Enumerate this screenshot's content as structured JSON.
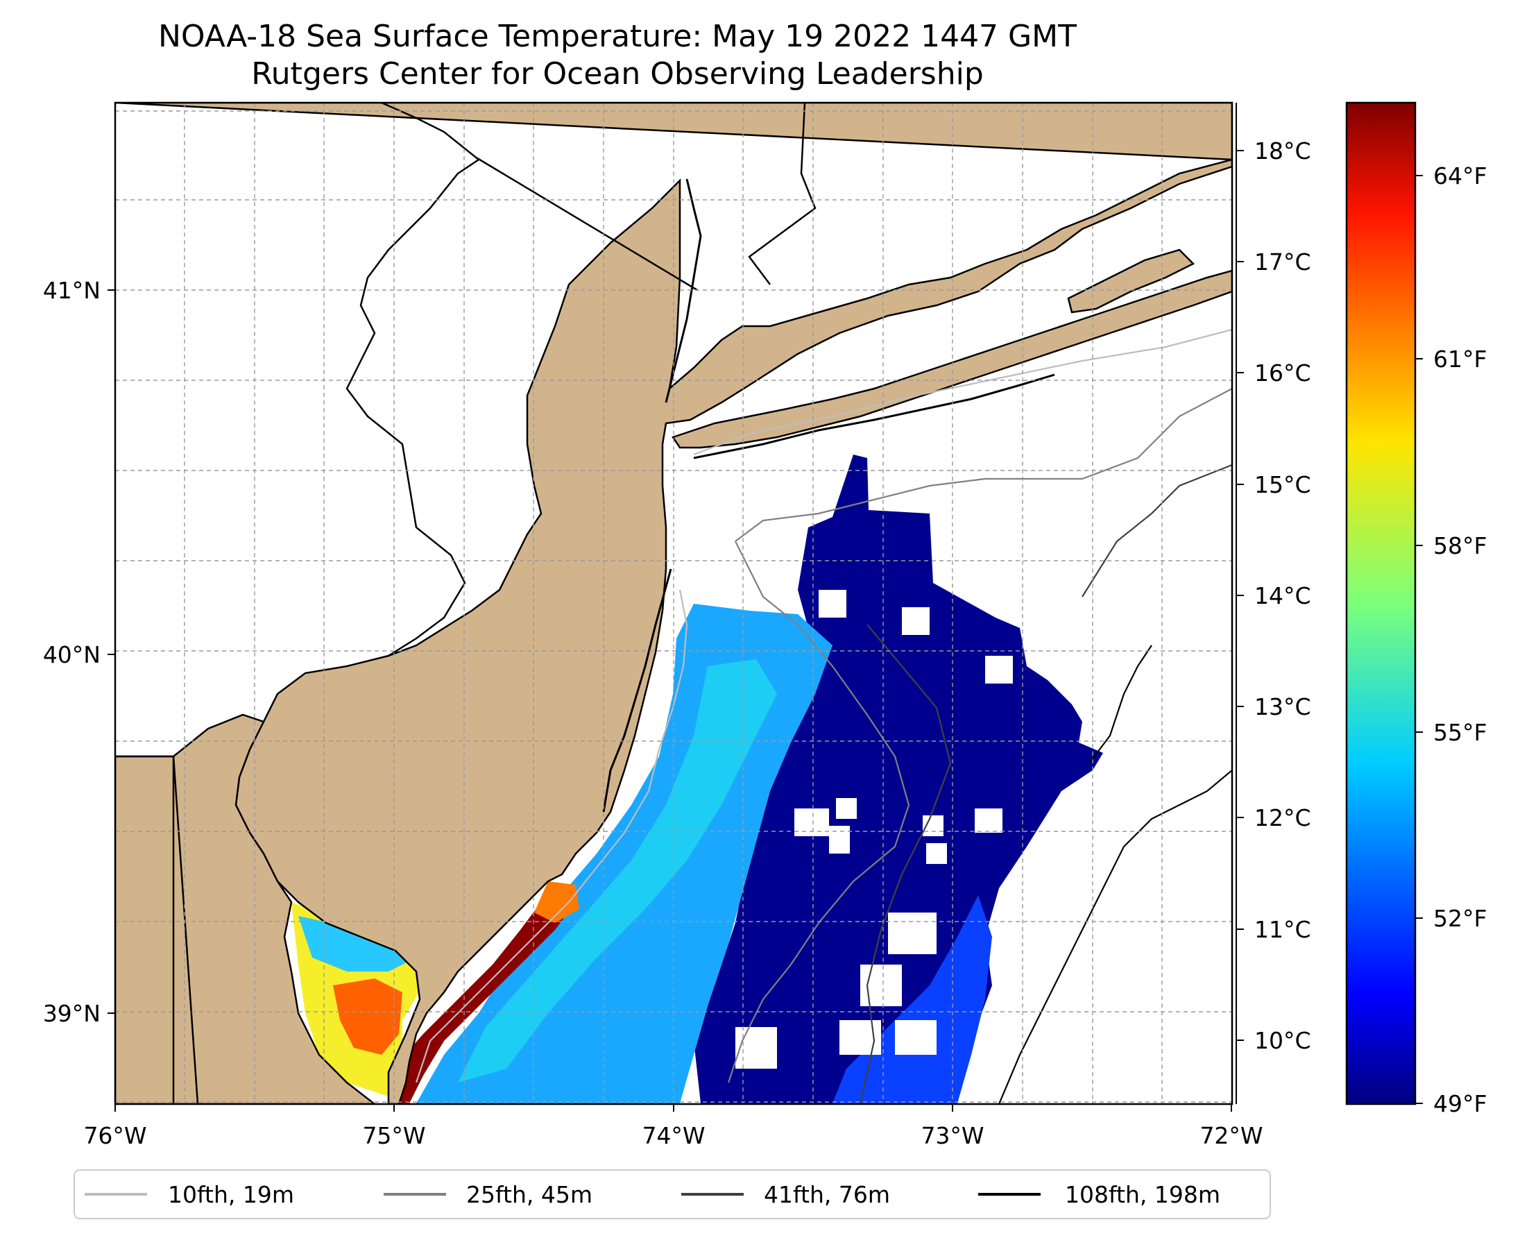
{
  "title": {
    "line1": "NOAA-18 Sea Surface Temperature: May 19 2022 1447 GMT",
    "line2": "Rutgers Center for Ocean Observing Leadership"
  },
  "map": {
    "lon_range": [
      -76,
      -72
    ],
    "lat_range": [
      38.72,
      41.52
    ],
    "land_color": "#d2b48c",
    "ocean_color": "#ffffff",
    "gridlines": true,
    "x_ticks": [
      "76°W",
      "75°W",
      "74°W",
      "73°W",
      "72°W"
    ],
    "y_ticks": [
      "41°N",
      "40°N",
      "39°N"
    ]
  },
  "colorbar": {
    "colormap": "jet",
    "celsius_ticks": [
      "18°C",
      "17°C",
      "16°C",
      "15°C",
      "14°C",
      "13°C",
      "12°C",
      "11°C",
      "10°C"
    ],
    "fahrenheit_ticks": [
      "64°F",
      "61°F",
      "58°F",
      "55°F",
      "52°F",
      "49°F"
    ],
    "range_f": [
      49,
      65.5
    ]
  },
  "legend": {
    "items": [
      {
        "label": "10fth, 19m",
        "color": "#bdbdbd"
      },
      {
        "label": "25fth, 45m",
        "color": "#808080"
      },
      {
        "label": "41fth, 76m",
        "color": "#404040"
      },
      {
        "label": "108fth, 198m",
        "color": "#000000"
      }
    ]
  }
}
